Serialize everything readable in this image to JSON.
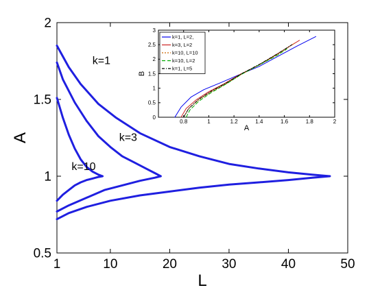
{
  "chart_data": [
    {
      "type": "line",
      "xlabel": "L",
      "ylabel": "A",
      "xlim": [
        1,
        50
      ],
      "ylim": [
        0.5,
        2
      ],
      "xticks": [
        1,
        10,
        20,
        30,
        40,
        50
      ],
      "yticks": [
        0.5,
        1,
        1.5,
        2
      ],
      "xtick_labels": [
        "1",
        "10",
        "20",
        "30",
        "40",
        "50"
      ],
      "ytick_labels": [
        "0.5",
        "1",
        "1.5",
        "2"
      ],
      "grid": false,
      "line_color": "#1f1fe0",
      "annotations": [
        {
          "text": "k=1",
          "x": 8.5,
          "y": 1.73
        },
        {
          "text": "k=3",
          "x": 13,
          "y": 1.23
        },
        {
          "text": "k=10",
          "x": 5.5,
          "y": 1.04
        }
      ],
      "series": [
        {
          "points": [
            [
              1,
              1.85
            ],
            [
              3,
              1.71
            ],
            [
              5,
              1.6
            ],
            [
              8,
              1.47
            ],
            [
              11,
              1.38
            ],
            [
              15,
              1.28
            ],
            [
              20,
              1.19
            ],
            [
              25,
              1.13
            ],
            [
              30,
              1.08
            ],
            [
              35,
              1.05
            ],
            [
              40,
              1.025
            ],
            [
              44,
              1.01
            ],
            [
              47,
              1.0
            ],
            [
              44,
              0.99
            ],
            [
              40,
              0.975
            ],
            [
              35,
              0.96
            ],
            [
              30,
              0.945
            ],
            [
              25,
              0.925
            ],
            [
              20,
              0.9
            ],
            [
              15,
              0.875
            ],
            [
              10,
              0.84
            ],
            [
              6,
              0.8
            ],
            [
              3,
              0.76
            ],
            [
              1,
              0.72
            ]
          ]
        },
        {
          "points": [
            [
              1,
              1.74
            ],
            [
              2,
              1.63
            ],
            [
              4,
              1.48
            ],
            [
              6,
              1.36
            ],
            [
              8,
              1.26
            ],
            [
              10,
              1.19
            ],
            [
              12,
              1.13
            ],
            [
              14,
              1.09
            ],
            [
              16,
              1.05
            ],
            [
              17.5,
              1.02
            ],
            [
              18.5,
              1.0
            ],
            [
              17.5,
              0.99
            ],
            [
              15,
              0.97
            ],
            [
              12,
              0.94
            ],
            [
              9,
              0.91
            ],
            [
              6,
              0.86
            ],
            [
              3,
              0.81
            ],
            [
              1,
              0.77
            ]
          ]
        },
        {
          "points": [
            [
              1,
              1.51
            ],
            [
              2,
              1.38
            ],
            [
              3,
              1.27
            ],
            [
              4,
              1.18
            ],
            [
              5,
              1.11
            ],
            [
              6,
              1.06
            ],
            [
              7,
              1.03
            ],
            [
              8,
              1.01
            ],
            [
              8.7,
              1.0
            ],
            [
              8,
              0.995
            ],
            [
              7,
              0.985
            ],
            [
              6,
              0.975
            ],
            [
              5,
              0.96
            ],
            [
              4,
              0.94
            ],
            [
              3,
              0.91
            ],
            [
              2,
              0.88
            ],
            [
              1,
              0.84
            ]
          ]
        }
      ]
    },
    {
      "type": "line",
      "xlabel": "A",
      "ylabel": "B",
      "xlim": [
        0.6,
        2
      ],
      "ylim": [
        0,
        3
      ],
      "xticks": [
        0.8,
        1,
        1.2,
        1.4,
        1.6,
        1.8,
        2
      ],
      "yticks": [
        0,
        0.5,
        1,
        1.5,
        2,
        2.5,
        3
      ],
      "xtick_labels": [
        "0.8",
        "1",
        "1.2",
        "1.4",
        "1.6",
        "1.8",
        "2"
      ],
      "ytick_labels": [
        "0",
        "0.5",
        "1",
        "1.5",
        "2",
        "2.5",
        "3"
      ],
      "legend": "top-left",
      "series": [
        {
          "name": "k=1, L=2,",
          "color": "#0000ee",
          "dash": "",
          "points": [
            [
              0.73,
              0
            ],
            [
              0.78,
              0.35
            ],
            [
              0.86,
              0.7
            ],
            [
              0.96,
              0.95
            ],
            [
              1.1,
              1.2
            ],
            [
              1.25,
              1.48
            ],
            [
              1.4,
              1.75
            ],
            [
              1.55,
              2.1
            ],
            [
              1.7,
              2.45
            ],
            [
              1.85,
              2.78
            ]
          ]
        },
        {
          "name": "k=3, L=2",
          "color": "#cc2222",
          "dash": "",
          "points": [
            [
              0.78,
              0
            ],
            [
              0.82,
              0.3
            ],
            [
              0.9,
              0.6
            ],
            [
              1.0,
              0.88
            ],
            [
              1.12,
              1.15
            ],
            [
              1.25,
              1.48
            ],
            [
              1.4,
              1.8
            ],
            [
              1.55,
              2.2
            ],
            [
              1.72,
              2.65
            ]
          ]
        },
        {
          "name": "k=10, L=10",
          "color": "#cc6600",
          "dash": "2,2",
          "points": [
            [
              0.8,
              0
            ],
            [
              0.84,
              0.3
            ],
            [
              0.92,
              0.6
            ],
            [
              1.02,
              0.88
            ],
            [
              1.14,
              1.16
            ],
            [
              1.26,
              1.48
            ],
            [
              1.4,
              1.8
            ],
            [
              1.55,
              2.18
            ],
            [
              1.68,
              2.55
            ]
          ]
        },
        {
          "name": "k=10, L=2",
          "color": "#00aa00",
          "dash": "5,3",
          "points": [
            [
              0.82,
              0
            ],
            [
              0.85,
              0.25
            ],
            [
              0.92,
              0.55
            ],
            [
              1.02,
              0.85
            ],
            [
              1.14,
              1.15
            ],
            [
              1.26,
              1.48
            ],
            [
              1.4,
              1.8
            ],
            [
              1.55,
              2.15
            ],
            [
              1.62,
              2.35
            ]
          ]
        },
        {
          "name": "k=1, L=5",
          "color": "#000000",
          "dash": "4,2,1,2",
          "points": [
            [
              0.8,
              0
            ],
            [
              0.84,
              0.3
            ],
            [
              0.92,
              0.62
            ],
            [
              1.02,
              0.9
            ],
            [
              1.14,
              1.18
            ],
            [
              1.26,
              1.5
            ],
            [
              1.4,
              1.82
            ],
            [
              1.55,
              2.2
            ],
            [
              1.66,
              2.5
            ]
          ]
        }
      ]
    }
  ]
}
